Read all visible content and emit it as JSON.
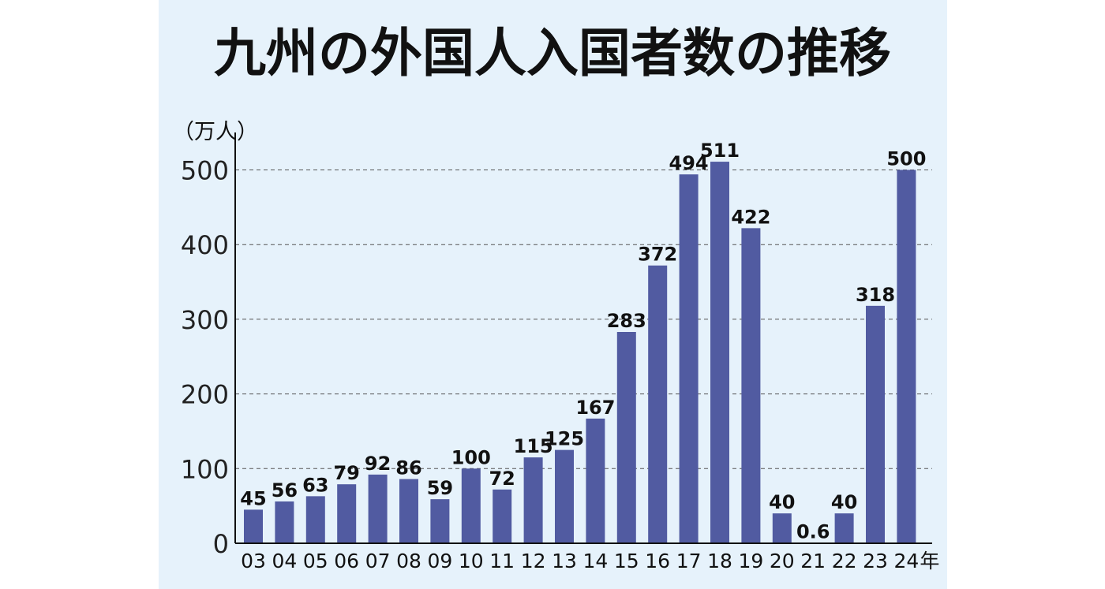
{
  "chart_data": {
    "type": "bar",
    "title": "九州の外国人入国者数の推移",
    "ylabel": "（万人）",
    "x_suffix": "年",
    "ylim": [
      0,
      550
    ],
    "yticks": [
      0,
      100,
      200,
      300,
      400,
      500
    ],
    "grid": true,
    "bar_color": "#515ba1",
    "background_color": "#e6f2fb",
    "categories": [
      "03",
      "04",
      "05",
      "06",
      "07",
      "08",
      "09",
      "10",
      "11",
      "12",
      "13",
      "14",
      "15",
      "16",
      "17",
      "18",
      "19",
      "20",
      "21",
      "22",
      "23",
      "24"
    ],
    "values": [
      45,
      56,
      63,
      79,
      92,
      86,
      59,
      100,
      72,
      115,
      125,
      167,
      283,
      372,
      494,
      511,
      422,
      40,
      0.6,
      40,
      318,
      500
    ],
    "value_labels": [
      "45",
      "56",
      "63",
      "79",
      "92",
      "86",
      "59",
      "100",
      "72",
      "115",
      "125",
      "167",
      "283",
      "372",
      "494",
      "511",
      "422",
      "40",
      "0.6",
      "40",
      "318",
      "500"
    ]
  }
}
